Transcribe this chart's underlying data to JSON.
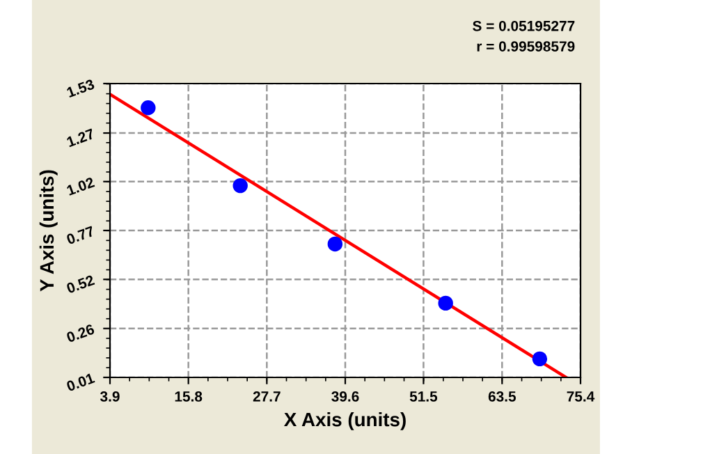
{
  "chart_data": {
    "type": "scatter",
    "xlabel": "X Axis (units)",
    "ylabel": "Y Axis (units)",
    "annotations": [
      "S = 0.05195277",
      "r = 0.99598579"
    ],
    "series": [
      {
        "color": "#0000ff",
        "x": [
          9.7,
          23.7,
          38.1,
          54.9,
          69.2
        ],
        "values": [
          1.405,
          1.002,
          0.7,
          0.394,
          0.106
        ],
        "marker": "circle"
      },
      {
        "type": "line",
        "color": "#ff0000",
        "x": [
          3.9,
          73.2
        ],
        "values": [
          1.475,
          0.01
        ],
        "marker": "none"
      }
    ],
    "xlim": [
      3.9,
      75.4
    ],
    "xticks": [
      3.9,
      {
        "value": 15.817,
        "label": "15.8"
      },
      {
        "value": 27.733,
        "label": "27.7"
      },
      {
        "value": 39.65,
        "label": "39.6"
      },
      {
        "value": 51.54,
        "label": "51.5"
      },
      {
        "value": 63.483,
        "label": "63.5"
      },
      75.4
    ],
    "ylim": [
      0.01,
      1.53
    ],
    "yticks": [
      0.01,
      {
        "value": 0.263,
        "label": "0.26"
      },
      {
        "value": 0.517,
        "label": "0.52"
      },
      0.77,
      {
        "value": 1.023,
        "label": "1.02"
      },
      {
        "value": 1.274,
        "label": "1.27"
      },
      1.53
    ],
    "grid": true,
    "line_style": "solid"
  }
}
